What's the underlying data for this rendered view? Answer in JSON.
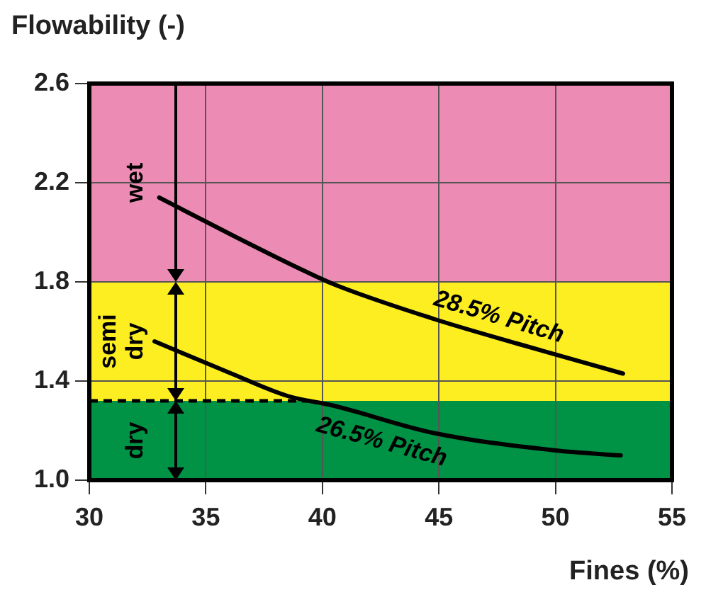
{
  "chart_data": {
    "type": "line",
    "ylabel": "Flowability (-)",
    "xlabel": "Fines (%)",
    "xlim": [
      30,
      55
    ],
    "xticks": [
      30,
      35,
      40,
      45,
      50,
      55
    ],
    "ylim": [
      1.0,
      2.6
    ],
    "yticks": [
      {
        "value": 1.0,
        "label": "1.0"
      },
      1.4,
      1.8,
      2.2,
      2.6
    ],
    "grid": true,
    "legend": false,
    "marker": "none",
    "line_style": "solid",
    "bands": [
      {
        "axis": "y",
        "from": 1.8,
        "to": 2.6,
        "label": "wet",
        "color": "#ec8cb4"
      },
      {
        "axis": "y",
        "from": 1.32,
        "to": 1.8,
        "label": "semi dry",
        "color": "#fcee21"
      },
      {
        "axis": "y",
        "from": 1.0,
        "to": 1.32,
        "label": "dry",
        "color": "#009245"
      }
    ],
    "ref_lines": [
      {
        "axis": "y",
        "value": 1.32,
        "line_style": "dashed",
        "color": "#000000"
      }
    ],
    "series": [
      {
        "name": "28.5% Pitch",
        "color": "#000000",
        "x": [
          33.0,
          36.1,
          39.1,
          40.5,
          44.8,
          48.4,
          52.9
        ],
        "values": [
          2.14,
          1.99,
          1.85,
          1.79,
          1.65,
          1.55,
          1.43
        ]
      },
      {
        "name": "26.5% Pitch",
        "color": "#000000",
        "x": [
          32.8,
          36.1,
          38.5,
          40.5,
          44.8,
          50.0,
          52.8
        ],
        "values": [
          1.56,
          1.43,
          1.34,
          1.3,
          1.19,
          1.12,
          1.1
        ]
      }
    ]
  }
}
